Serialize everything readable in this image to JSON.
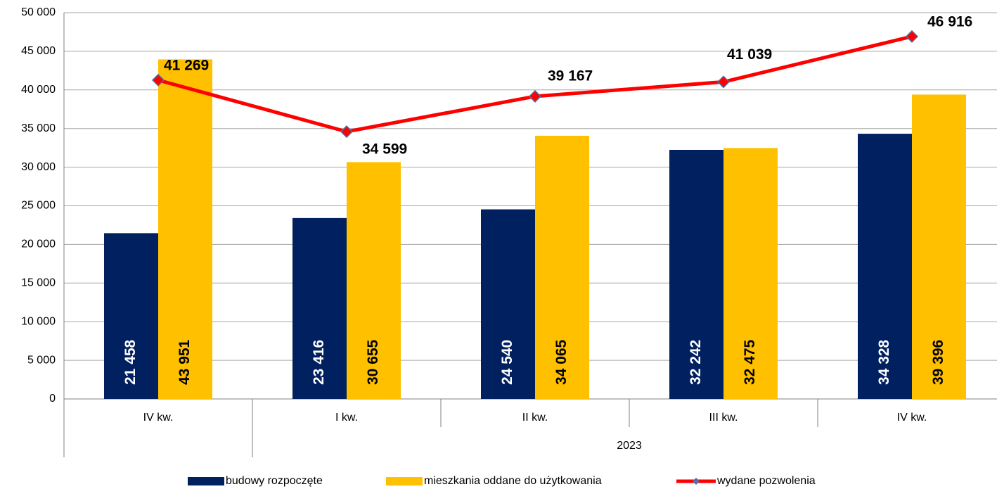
{
  "chart_data": {
    "type": "bar",
    "categories": [
      "IV kw.",
      "I kw.",
      "II kw.",
      "III kw.",
      "IV kw."
    ],
    "group_label": "2023",
    "ylim": [
      0,
      50000
    ],
    "yticks": [
      0,
      {
        "value": 5000,
        "label": "5 000"
      },
      {
        "value": 10000,
        "label": "10 000"
      },
      {
        "value": 15000,
        "label": "15 000"
      },
      {
        "value": 20000,
        "label": "20 000"
      },
      {
        "value": 25000,
        "label": "25 000"
      },
      {
        "value": 30000,
        "label": "30 000"
      },
      {
        "value": 35000,
        "label": "35 000"
      },
      {
        "value": 40000,
        "label": "40 000"
      },
      {
        "value": 45000,
        "label": "45 000"
      },
      {
        "value": 50000,
        "label": "50 000"
      }
    ],
    "grid": true,
    "legend": "bottom",
    "series": [
      {
        "name": "budowy rozpoczęte",
        "type": "bar",
        "color": "#002060",
        "values": [
          21458,
          23416,
          24540,
          32242,
          34328
        ],
        "value_labels": [
          "21 458",
          "23 416",
          "24 540",
          "32 242",
          "34 328"
        ]
      },
      {
        "name": "mieszkania oddane do użytkowania",
        "type": "bar",
        "color": "#ffc000",
        "values": [
          43951,
          30655,
          34065,
          32475,
          39396
        ],
        "value_labels": [
          "43 951",
          "30 655",
          "34 065",
          "32 475",
          "39 396"
        ]
      },
      {
        "name": "wydane pozwolenia",
        "type": "line",
        "color": "#ff0000",
        "values": [
          41269,
          34599,
          39167,
          41039,
          46916
        ],
        "value_labels": [
          "41 269",
          "34 599",
          "39 167",
          "41 039",
          "46 916"
        ]
      }
    ]
  }
}
